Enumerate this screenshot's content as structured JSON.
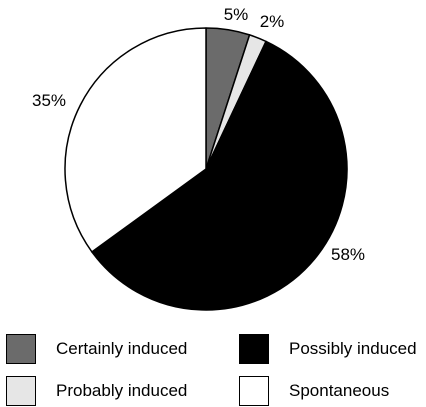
{
  "chart_data": {
    "type": "pie",
    "title": "",
    "slices": [
      {
        "name": "Certainly induced",
        "value": 5,
        "label": "5%",
        "color": "#6b6b6b"
      },
      {
        "name": "Probably induced",
        "value": 2,
        "label": "2%",
        "color": "#e6e6e6"
      },
      {
        "name": "Possibly induced",
        "value": 58,
        "label": "58%",
        "color": "#000000"
      },
      {
        "name": "Spontaneous",
        "value": 35,
        "label": "35%",
        "color": "#ffffff"
      }
    ],
    "start_angle_deg": 0,
    "direction": "clockwise",
    "legend": {
      "position": "bottom",
      "entries": [
        {
          "label": "Certainly induced",
          "color": "#6b6b6b"
        },
        {
          "label": "Possibly induced",
          "color": "#000000"
        },
        {
          "label": "Probably induced",
          "color": "#e6e6e6"
        },
        {
          "label": "Spontaneous",
          "color": "#ffffff"
        }
      ]
    }
  }
}
